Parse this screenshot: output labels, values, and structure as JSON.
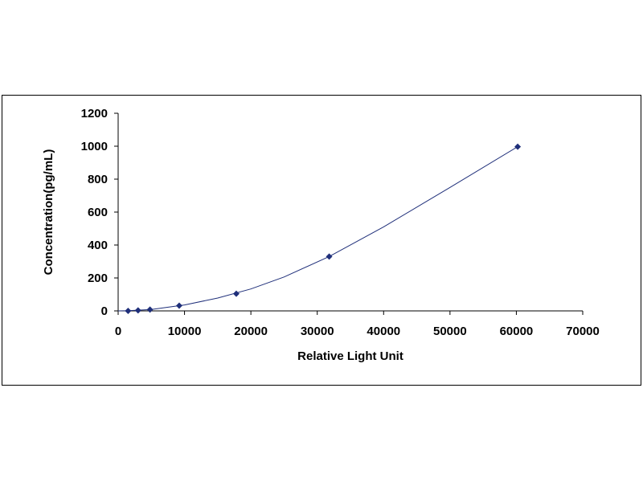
{
  "chart_data": {
    "type": "scatter",
    "title": "",
    "xlabel": "Relative Light Unit",
    "ylabel": "Concentration(pg/mL)",
    "xlim": [
      0,
      70000
    ],
    "ylim": [
      0,
      1200
    ],
    "xticks": [
      0,
      10000,
      20000,
      30000,
      40000,
      50000,
      60000,
      70000
    ],
    "yticks": [
      0,
      200,
      400,
      600,
      800,
      1000,
      1200
    ],
    "grid": false,
    "legend": "none",
    "marker_color": "#1f2f7a",
    "line_color": "#1f2f7a",
    "series": [
      {
        "x": [
          1500,
          3000,
          4800,
          9200,
          17800,
          31800,
          60200
        ],
        "y": [
          0,
          3,
          8,
          32,
          104,
          330,
          997
        ]
      }
    ],
    "fit_curve": {
      "x": [
        0,
        1500,
        5000,
        10000,
        15000,
        20000,
        25000,
        31800,
        40000,
        50000,
        60200
      ],
      "y": [
        0,
        1,
        9,
        36,
        78,
        133,
        206,
        330,
        510,
        750,
        997
      ]
    }
  }
}
